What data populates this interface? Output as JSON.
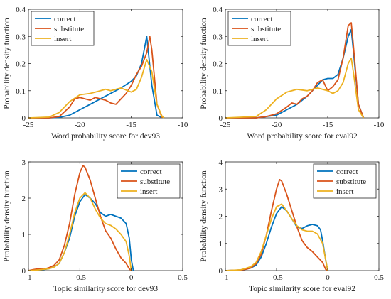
{
  "chart_data": [
    {
      "type": "line",
      "xlabel": "Word probability score for dev93",
      "ylabel": "Probability density function",
      "xlim": [
        -25,
        -10
      ],
      "ylim": [
        0,
        0.4
      ],
      "xticks": [
        -25,
        -20,
        -15,
        -10
      ],
      "yticks": [
        0,
        0.1,
        0.2,
        0.3,
        0.4
      ],
      "xtick_labels": [
        "-25",
        "-20",
        "-15",
        "-10"
      ],
      "ytick_labels": [
        "0",
        "0.1",
        "0.2",
        "0.3",
        "0.4"
      ],
      "legend_position": "top-left",
      "series": [
        {
          "name": "correct",
          "color": "#0072BD",
          "x": [
            -25,
            -23,
            -22,
            -21,
            -20,
            -19,
            -18,
            -17,
            -16,
            -15,
            -14.5,
            -14,
            -13.5,
            -13,
            -12.5,
            -12
          ],
          "y": [
            0,
            0,
            0.002,
            0.01,
            0.03,
            0.05,
            0.07,
            0.09,
            0.11,
            0.135,
            0.155,
            0.2,
            0.3,
            0.12,
            0.01,
            0
          ]
        },
        {
          "name": "substitute",
          "color": "#D95319",
          "x": [
            -25,
            -23,
            -22,
            -21,
            -20.5,
            -20,
            -19.5,
            -19,
            -18.5,
            -18,
            -17.5,
            -17,
            -16.5,
            -16,
            -15.5,
            -15,
            -14.5,
            -14,
            -13.5,
            -13.2,
            -13,
            -12.5,
            -12
          ],
          "y": [
            0,
            0,
            0.005,
            0.04,
            0.07,
            0.075,
            0.07,
            0.065,
            0.075,
            0.07,
            0.065,
            0.055,
            0.05,
            0.07,
            0.09,
            0.12,
            0.16,
            0.19,
            0.24,
            0.3,
            0.25,
            0.05,
            0
          ]
        },
        {
          "name": "insert",
          "color": "#EDB120",
          "x": [
            -25,
            -23,
            -22,
            -21,
            -20,
            -19,
            -18.5,
            -18,
            -17.5,
            -17,
            -16.5,
            -16,
            -15,
            -14.5,
            -14,
            -13.5,
            -13,
            -12.5,
            -12,
            -11.8
          ],
          "y": [
            0,
            0.003,
            0.02,
            0.06,
            0.085,
            0.09,
            0.095,
            0.1,
            0.105,
            0.1,
            0.105,
            0.11,
            0.095,
            0.105,
            0.15,
            0.215,
            0.17,
            0.05,
            0.005,
            0
          ]
        }
      ]
    },
    {
      "type": "line",
      "xlabel": "Word probability score for eval92",
      "ylabel": "Probability density function",
      "xlim": [
        -25,
        -10
      ],
      "ylim": [
        0,
        0.4
      ],
      "xticks": [
        -25,
        -20,
        -15,
        -10
      ],
      "yticks": [
        0,
        0.1,
        0.2,
        0.3,
        0.4
      ],
      "xtick_labels": [
        "-25",
        "-20",
        "-15",
        "-10"
      ],
      "ytick_labels": [
        "0",
        "0.1",
        "0.2",
        "0.3",
        "0.4"
      ],
      "legend_position": "top-left",
      "series": [
        {
          "name": "correct",
          "color": "#0072BD",
          "x": [
            -25,
            -22,
            -21,
            -20,
            -19,
            -18,
            -17,
            -16,
            -15.5,
            -15,
            -14.5,
            -14,
            -13.5,
            -13,
            -12.7,
            -12.5,
            -12,
            -11.5
          ],
          "y": [
            0,
            0,
            0.005,
            0.01,
            0.03,
            0.05,
            0.08,
            0.12,
            0.14,
            0.145,
            0.145,
            0.16,
            0.22,
            0.3,
            0.325,
            0.25,
            0.05,
            0
          ]
        },
        {
          "name": "substitute",
          "color": "#D95319",
          "x": [
            -25,
            -22,
            -21,
            -20,
            -19,
            -18.5,
            -18,
            -17.5,
            -17,
            -16.5,
            -16,
            -15.5,
            -15,
            -14.5,
            -14,
            -13.5,
            -13,
            -12.7,
            -12.5,
            -12,
            -11.5
          ],
          "y": [
            0,
            0,
            0.005,
            0.015,
            0.04,
            0.055,
            0.05,
            0.07,
            0.08,
            0.1,
            0.13,
            0.14,
            0.1,
            0.115,
            0.14,
            0.22,
            0.34,
            0.35,
            0.27,
            0.05,
            0
          ]
        },
        {
          "name": "insert",
          "color": "#EDB120",
          "x": [
            -25,
            -22,
            -21,
            -20,
            -19,
            -18,
            -17,
            -16,
            -15,
            -14.5,
            -14,
            -13.5,
            -13,
            -12.7,
            -12.5,
            -12,
            -11.5
          ],
          "y": [
            0,
            0.005,
            0.03,
            0.07,
            0.095,
            0.105,
            0.1,
            0.11,
            0.1,
            0.09,
            0.1,
            0.13,
            0.2,
            0.22,
            0.17,
            0.03,
            0
          ]
        }
      ]
    },
    {
      "type": "line",
      "xlabel": "Topic similarity score for dev93",
      "ylabel": "Probability density function",
      "xlim": [
        -1,
        0.5
      ],
      "ylim": [
        0,
        3
      ],
      "xticks": [
        -1,
        -0.5,
        0,
        0.5
      ],
      "yticks": [
        0,
        1,
        2,
        3
      ],
      "xtick_labels": [
        "-1",
        "-0.5",
        "0",
        "0.5"
      ],
      "ytick_labels": [
        "0",
        "1",
        "2",
        "3"
      ],
      "legend_position": "top-right",
      "series": [
        {
          "name": "correct",
          "color": "#0072BD",
          "x": [
            -1,
            -0.9,
            -0.85,
            -0.8,
            -0.75,
            -0.7,
            -0.65,
            -0.6,
            -0.55,
            -0.5,
            -0.45,
            -0.4,
            -0.35,
            -0.3,
            -0.25,
            -0.2,
            -0.15,
            -0.1,
            -0.05,
            -0.02,
            0,
            0.02
          ],
          "y": [
            0,
            0.02,
            0.03,
            0.05,
            0.1,
            0.2,
            0.5,
            0.9,
            1.5,
            1.9,
            2.1,
            2.0,
            1.85,
            1.6,
            1.5,
            1.55,
            1.5,
            1.45,
            1.3,
            0.9,
            0.3,
            0
          ]
        },
        {
          "name": "substitute",
          "color": "#D95319",
          "x": [
            -1,
            -0.95,
            -0.9,
            -0.85,
            -0.8,
            -0.75,
            -0.7,
            -0.65,
            -0.6,
            -0.55,
            -0.5,
            -0.47,
            -0.45,
            -0.4,
            -0.35,
            -0.3,
            -0.25,
            -0.2,
            -0.15,
            -0.1,
            -0.05,
            -0.02,
            0
          ],
          "y": [
            0,
            0.03,
            0.05,
            0.04,
            0.08,
            0.15,
            0.3,
            0.7,
            1.3,
            2.1,
            2.7,
            2.9,
            2.85,
            2.5,
            2.0,
            1.5,
            1.1,
            0.9,
            0.6,
            0.35,
            0.2,
            0.05,
            0
          ]
        },
        {
          "name": "insert",
          "color": "#EDB120",
          "x": [
            -1,
            -0.9,
            -0.8,
            -0.75,
            -0.7,
            -0.65,
            -0.6,
            -0.55,
            -0.5,
            -0.45,
            -0.4,
            -0.35,
            -0.3,
            -0.25,
            -0.2,
            -0.15,
            -0.1,
            -0.05,
            -0.02,
            0
          ],
          "y": [
            0,
            0.02,
            0.05,
            0.1,
            0.2,
            0.5,
            1.0,
            1.6,
            2.0,
            2.15,
            2.0,
            1.7,
            1.45,
            1.3,
            1.25,
            1.15,
            1.0,
            0.8,
            0.4,
            0
          ]
        }
      ]
    },
    {
      "type": "line",
      "xlabel": "Topic similarity score for eval92",
      "ylabel": "Probability density function",
      "xlim": [
        -1,
        0.5
      ],
      "ylim": [
        0,
        4
      ],
      "xticks": [
        -1,
        -0.5,
        0,
        0.5
      ],
      "yticks": [
        0,
        1,
        2,
        3,
        4
      ],
      "xtick_labels": [
        "-1",
        "-0.5",
        "0",
        "0.5"
      ],
      "ytick_labels": [
        "0",
        "1",
        "2",
        "3",
        "4"
      ],
      "legend_position": "top-right",
      "series": [
        {
          "name": "correct",
          "color": "#0072BD",
          "x": [
            -1,
            -0.85,
            -0.8,
            -0.75,
            -0.7,
            -0.65,
            -0.6,
            -0.55,
            -0.5,
            -0.45,
            -0.4,
            -0.35,
            -0.3,
            -0.25,
            -0.2,
            -0.15,
            -0.1,
            -0.07,
            -0.05,
            -0.02,
            0
          ],
          "y": [
            0,
            0.02,
            0.05,
            0.1,
            0.2,
            0.5,
            1.0,
            1.6,
            2.1,
            2.35,
            2.2,
            1.9,
            1.6,
            1.55,
            1.65,
            1.7,
            1.65,
            1.5,
            1.1,
            0.4,
            0
          ]
        },
        {
          "name": "substitute",
          "color": "#D95319",
          "x": [
            -1,
            -0.85,
            -0.8,
            -0.75,
            -0.7,
            -0.65,
            -0.6,
            -0.55,
            -0.5,
            -0.47,
            -0.45,
            -0.4,
            -0.35,
            -0.3,
            -0.25,
            -0.2,
            -0.15,
            -0.1,
            -0.05,
            -0.02,
            0
          ],
          "y": [
            0,
            0.02,
            0.05,
            0.1,
            0.25,
            0.6,
            1.3,
            2.2,
            3.0,
            3.35,
            3.3,
            2.8,
            2.2,
            1.6,
            1.1,
            0.85,
            0.7,
            0.5,
            0.3,
            0.05,
            0
          ]
        },
        {
          "name": "insert",
          "color": "#EDB120",
          "x": [
            -1,
            -0.85,
            -0.8,
            -0.75,
            -0.7,
            -0.65,
            -0.6,
            -0.55,
            -0.5,
            -0.45,
            -0.4,
            -0.35,
            -0.3,
            -0.25,
            -0.2,
            -0.15,
            -0.1,
            -0.05,
            -0.02,
            0
          ],
          "y": [
            0,
            0.03,
            0.08,
            0.15,
            0.3,
            0.7,
            1.3,
            1.9,
            2.35,
            2.45,
            2.2,
            1.9,
            1.65,
            1.5,
            1.45,
            1.45,
            1.35,
            1.0,
            0.4,
            0
          ]
        }
      ]
    }
  ]
}
